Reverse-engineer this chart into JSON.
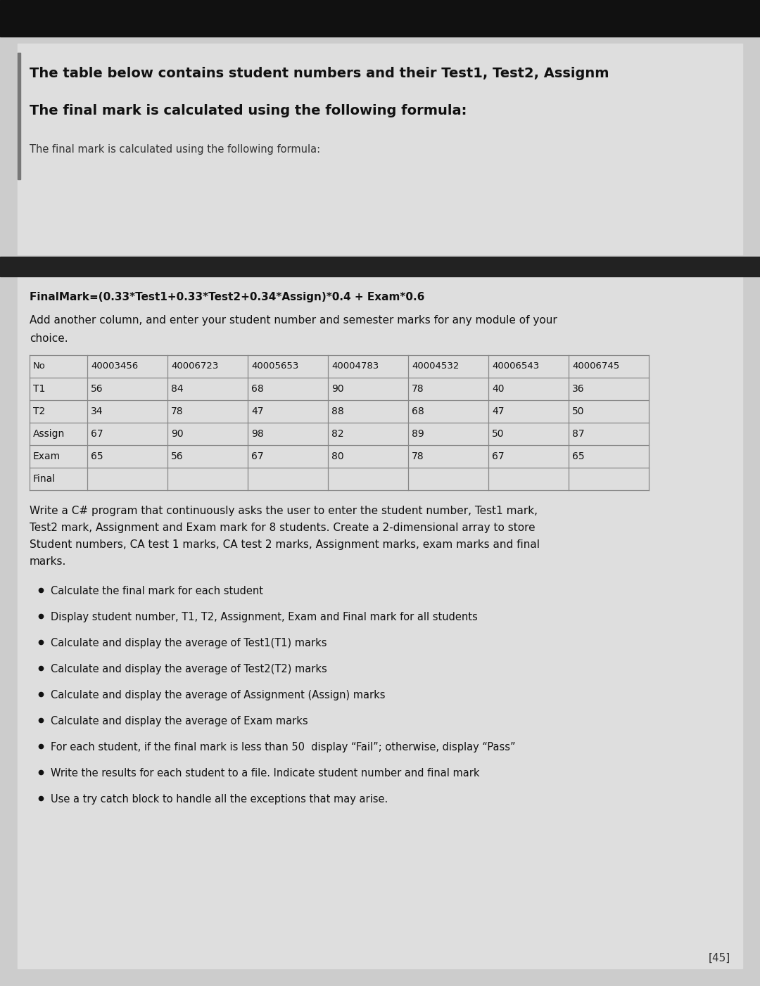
{
  "bg_color": "#cccccc",
  "top_bar_color": "#111111",
  "divider_bar_color": "#222222",
  "content_box_color": "#dedede",
  "title_line1": "The table below contains student numbers and their Test1, Test2, Assignm",
  "title_line2": "The final mark is calculated using the following formula:",
  "title_line3": "The final mark is calculated using the following formula:",
  "formula_text": "FinalMark=(0.33*Test1+0.33*Test2+0.34*Assign)*0.4 + Exam*0.6",
  "add_column_text1": "Add another column, and enter your student number and semester marks for any module of your",
  "add_column_text2": "choice.",
  "table_headers": [
    "No",
    "40003456",
    "40006723",
    "40005653",
    "40004783",
    "40004532",
    "40006543",
    "40006745"
  ],
  "table_rows": [
    [
      "T1",
      "56",
      "84",
      "68",
      "90",
      "78",
      "40",
      "36"
    ],
    [
      "T2",
      "34",
      "78",
      "47",
      "88",
      "68",
      "47",
      "50"
    ],
    [
      "Assign",
      "67",
      "90",
      "98",
      "82",
      "89",
      "50",
      "87"
    ],
    [
      "Exam",
      "65",
      "56",
      "67",
      "80",
      "78",
      "67",
      "65"
    ],
    [
      "Final",
      "",
      "",
      "",
      "",
      "",
      "",
      ""
    ]
  ],
  "write_line1": "Write a C# program that continuously asks the user to enter the student number, Test1 mark,",
  "write_line2": "Test2 mark, Assignment and Exam mark for 8 students. Create a 2-dimensional array to store",
  "write_line3": "Student numbers, CA test 1 marks, CA test 2 marks, Assignment marks, exam marks and final",
  "write_line4": "marks.",
  "bullet_points": [
    "Calculate the final mark for each student",
    "Display student number, T1, T2, Assignment, Exam and Final mark for all students",
    "Calculate and display the average of Test1(T1) marks",
    "Calculate and display the average of Test2(T2) marks",
    "Calculate and display the average of Assignment (Assign) marks",
    "Calculate and display the average of Exam marks",
    "For each student, if the final mark is less than 50  display “Fail”; otherwise, display “Pass”",
    "Write the results for each student to a file. Indicate student number and final mark",
    "Use a try catch block to handle all the exceptions that may arise."
  ],
  "footer_text": "[45]",
  "left_bar_color": "#777777",
  "table_line_color": "#888888",
  "text_color": "#111111",
  "small_text_color": "#333333"
}
